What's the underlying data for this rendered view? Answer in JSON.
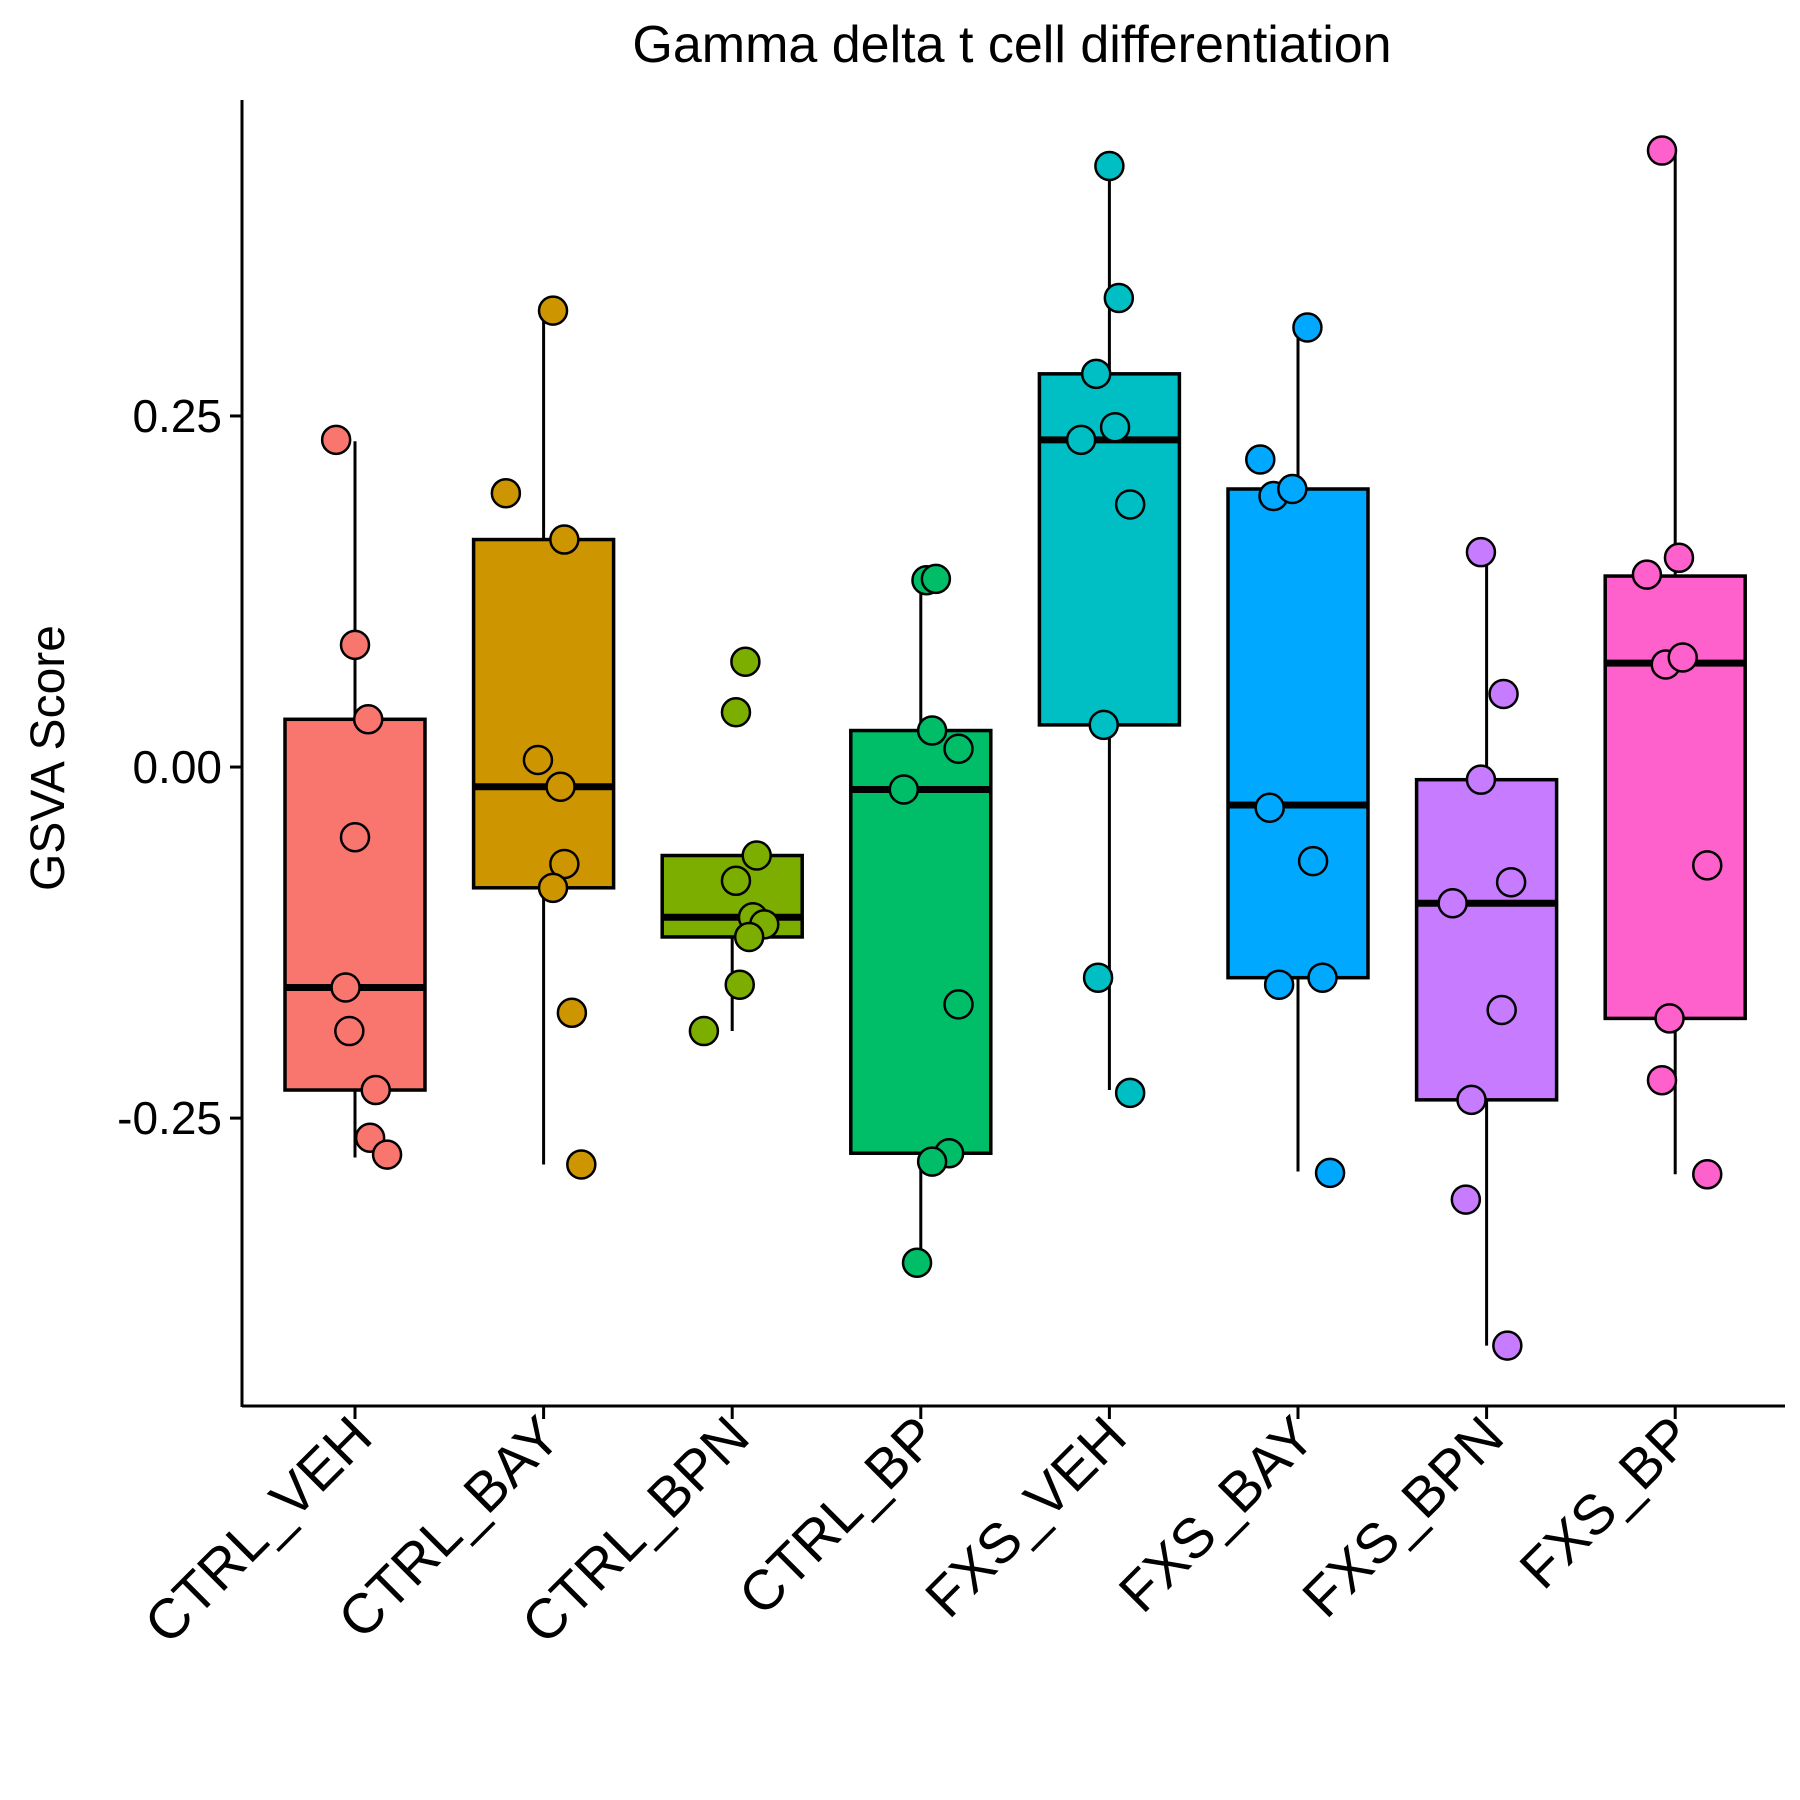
{
  "chart_data": {
    "type": "box",
    "title": "Gamma delta t cell differentiation",
    "ylabel": "GSVA Score",
    "xlabel": "",
    "ylim": [
      -0.455,
      0.475
    ],
    "yticks": [
      -0.25,
      0.0,
      0.25
    ],
    "ytick_labels": [
      "-0.25",
      "0.00",
      "0.25"
    ],
    "legend": "none",
    "grid": false,
    "categories": [
      "CTRL_VEH",
      "CTRL_BAY",
      "CTRL_BPN",
      "CTRL_BP",
      "FXS_VEH",
      "FXS_BAY",
      "FXS_BPN",
      "FXS_BP"
    ],
    "groups": [
      {
        "name": "CTRL_VEH",
        "color": "#F8766D",
        "box": {
          "whisker_low": -0.278,
          "q1": -0.23,
          "median": -0.157,
          "q3": 0.034,
          "whisker_high": 0.232
        },
        "points": [
          {
            "x": -0.1,
            "y": 0.233
          },
          {
            "x": 0.0,
            "y": 0.087
          },
          {
            "x": 0.07,
            "y": 0.034
          },
          {
            "x": 0.0,
            "y": -0.05
          },
          {
            "x": -0.05,
            "y": -0.157
          },
          {
            "x": -0.03,
            "y": -0.188
          },
          {
            "x": 0.11,
            "y": -0.23
          },
          {
            "x": 0.08,
            "y": -0.264
          },
          {
            "x": 0.17,
            "y": -0.276
          }
        ]
      },
      {
        "name": "CTRL_BAY",
        "color": "#CD9600",
        "box": {
          "whisker_low": -0.283,
          "q1": -0.086,
          "median": -0.014,
          "q3": 0.162,
          "whisker_high": 0.325
        },
        "points": [
          {
            "x": 0.05,
            "y": 0.325
          },
          {
            "x": -0.2,
            "y": 0.195
          },
          {
            "x": 0.11,
            "y": 0.162
          },
          {
            "x": -0.03,
            "y": 0.005
          },
          {
            "x": 0.09,
            "y": -0.014
          },
          {
            "x": 0.11,
            "y": -0.069
          },
          {
            "x": 0.05,
            "y": -0.086
          },
          {
            "x": 0.15,
            "y": -0.175
          },
          {
            "x": 0.2,
            "y": -0.283
          }
        ]
      },
      {
        "name": "CTRL_BPN",
        "color": "#7CAE00",
        "box": {
          "whisker_low": -0.188,
          "q1": -0.121,
          "median": -0.107,
          "q3": -0.063,
          "whisker_high": -0.063
        },
        "points": [
          {
            "x": 0.07,
            "y": 0.075
          },
          {
            "x": 0.02,
            "y": 0.039
          },
          {
            "x": 0.13,
            "y": -0.063
          },
          {
            "x": 0.02,
            "y": -0.081
          },
          {
            "x": 0.11,
            "y": -0.107
          },
          {
            "x": 0.17,
            "y": -0.112
          },
          {
            "x": 0.09,
            "y": -0.121
          },
          {
            "x": 0.04,
            "y": -0.155
          },
          {
            "x": -0.15,
            "y": -0.188
          }
        ]
      },
      {
        "name": "CTRL_BP",
        "color": "#00BE67",
        "box": {
          "whisker_low": -0.353,
          "q1": -0.275,
          "median": -0.016,
          "q3": 0.026,
          "whisker_high": 0.133
        },
        "points": [
          {
            "x": 0.03,
            "y": 0.133
          },
          {
            "x": 0.08,
            "y": 0.134
          },
          {
            "x": 0.06,
            "y": 0.026
          },
          {
            "x": 0.2,
            "y": 0.013
          },
          {
            "x": -0.09,
            "y": -0.016
          },
          {
            "x": 0.2,
            "y": -0.169
          },
          {
            "x": 0.15,
            "y": -0.275
          },
          {
            "x": 0.06,
            "y": -0.281
          },
          {
            "x": -0.02,
            "y": -0.353
          }
        ]
      },
      {
        "name": "FXS_VEH",
        "color": "#00BFC4",
        "box": {
          "whisker_low": -0.23,
          "q1": 0.03,
          "median": 0.233,
          "q3": 0.28,
          "whisker_high": 0.428
        },
        "points": [
          {
            "x": 0.0,
            "y": 0.428
          },
          {
            "x": 0.05,
            "y": 0.334
          },
          {
            "x": -0.07,
            "y": 0.28
          },
          {
            "x": 0.03,
            "y": 0.242
          },
          {
            "x": -0.15,
            "y": 0.233
          },
          {
            "x": 0.11,
            "y": 0.187
          },
          {
            "x": -0.03,
            "y": 0.03
          },
          {
            "x": -0.06,
            "y": -0.15
          },
          {
            "x": 0.11,
            "y": -0.232
          }
        ]
      },
      {
        "name": "FXS_BAY",
        "color": "#00A9FF",
        "box": {
          "whisker_low": -0.288,
          "q1": -0.15,
          "median": -0.027,
          "q3": 0.198,
          "whisker_high": 0.313
        },
        "points": [
          {
            "x": 0.05,
            "y": 0.313
          },
          {
            "x": -0.2,
            "y": 0.219
          },
          {
            "x": -0.13,
            "y": 0.193
          },
          {
            "x": -0.03,
            "y": 0.198
          },
          {
            "x": -0.15,
            "y": -0.029
          },
          {
            "x": 0.08,
            "y": -0.067
          },
          {
            "x": -0.1,
            "y": -0.155
          },
          {
            "x": 0.13,
            "y": -0.15
          },
          {
            "x": 0.17,
            "y": -0.289
          }
        ]
      },
      {
        "name": "FXS_BPN",
        "color": "#C77CFF",
        "box": {
          "whisker_low": -0.412,
          "q1": -0.237,
          "median": -0.097,
          "q3": -0.009,
          "whisker_high": 0.153
        },
        "points": [
          {
            "x": -0.03,
            "y": 0.153
          },
          {
            "x": 0.09,
            "y": 0.052
          },
          {
            "x": -0.03,
            "y": -0.009
          },
          {
            "x": -0.18,
            "y": -0.097
          },
          {
            "x": 0.13,
            "y": -0.082
          },
          {
            "x": 0.08,
            "y": -0.173
          },
          {
            "x": -0.08,
            "y": -0.237
          },
          {
            "x": -0.11,
            "y": -0.308
          },
          {
            "x": 0.11,
            "y": -0.412
          }
        ]
      },
      {
        "name": "FXS_BP",
        "color": "#FF61CC",
        "box": {
          "whisker_low": -0.29,
          "q1": -0.179,
          "median": 0.074,
          "q3": 0.136,
          "whisker_high": 0.438
        },
        "points": [
          {
            "x": -0.07,
            "y": 0.439
          },
          {
            "x": -0.15,
            "y": 0.137
          },
          {
            "x": 0.02,
            "y": 0.149
          },
          {
            "x": -0.05,
            "y": 0.073
          },
          {
            "x": 0.04,
            "y": 0.078
          },
          {
            "x": 0.17,
            "y": -0.07
          },
          {
            "x": -0.03,
            "y": -0.179
          },
          {
            "x": -0.07,
            "y": -0.223
          },
          {
            "x": 0.17,
            "y": -0.29
          }
        ]
      }
    ]
  }
}
